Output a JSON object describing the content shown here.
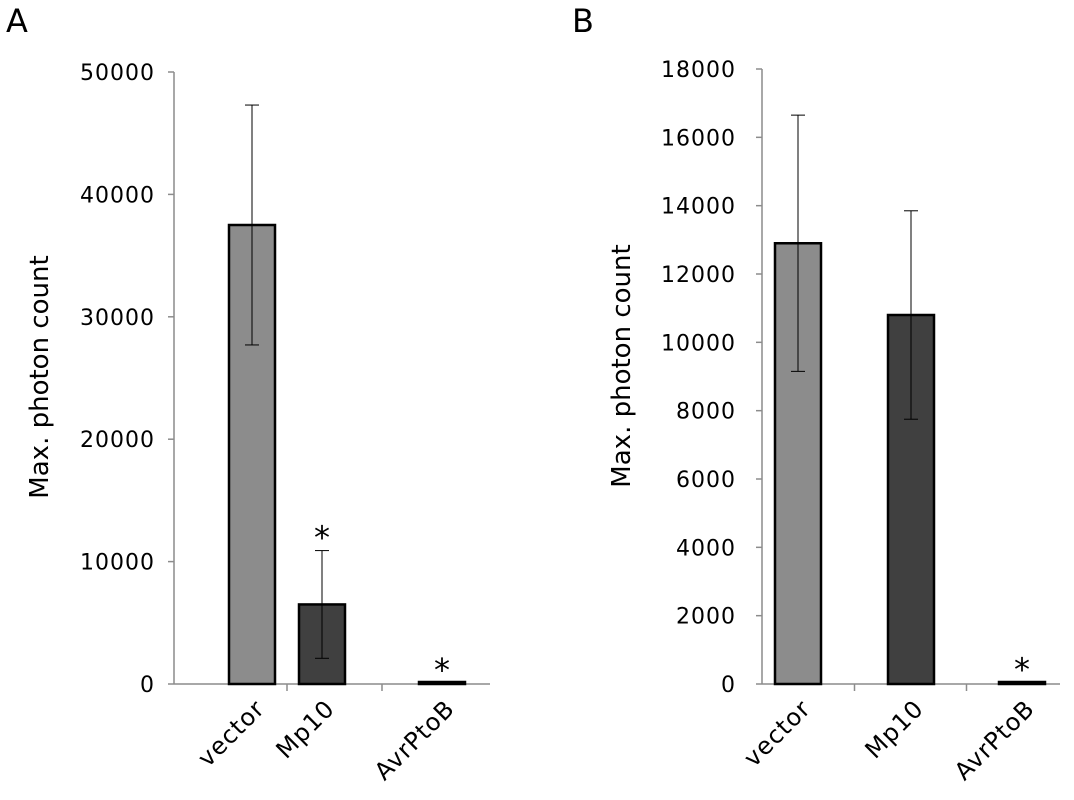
{
  "chart_data": [
    {
      "panel": "A",
      "type": "bar",
      "ylabel": "Max. photon count",
      "xlabel": "",
      "ylim": [
        0,
        50000
      ],
      "yticks": [
        0,
        10000,
        20000,
        30000,
        40000,
        50000
      ],
      "grid": false,
      "categories": [
        "vector",
        "Mp10",
        "AvrPtoB"
      ],
      "values": [
        37500,
        6500,
        100
      ],
      "error": [
        9800,
        4400,
        0
      ],
      "significance": [
        "",
        "*",
        "*"
      ],
      "colors": [
        "#8c8c8c",
        "#404040",
        "#404040"
      ]
    },
    {
      "panel": "B",
      "type": "bar",
      "ylabel": "Max. photon count",
      "xlabel": "",
      "ylim": [
        0,
        18000
      ],
      "yticks": [
        0,
        2000,
        4000,
        6000,
        8000,
        10000,
        12000,
        14000,
        16000,
        18000
      ],
      "grid": false,
      "categories": [
        "vector",
        "Mp10",
        "AvrPtoB"
      ],
      "values": [
        12900,
        10800,
        50
      ],
      "error": [
        3750,
        3050,
        0
      ],
      "significance": [
        "",
        "",
        "*"
      ],
      "colors": [
        "#8c8c8c",
        "#404040",
        "#404040"
      ]
    }
  ]
}
